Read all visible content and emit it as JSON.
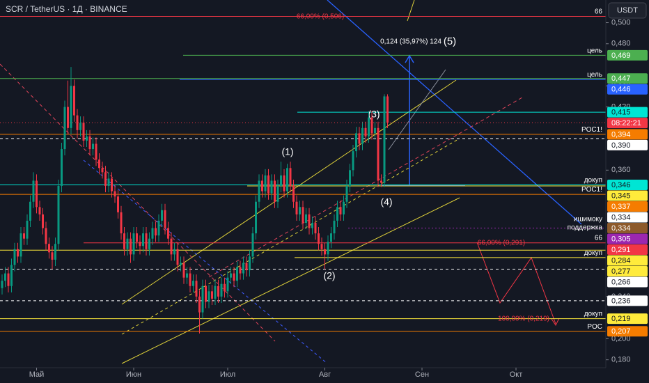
{
  "chart_data": {
    "type": "candlestick",
    "title": "SCR / TetherUS · 1Д · BINANCE",
    "currency": "USDT",
    "countdown": "08:22:21",
    "up_color": "#089981",
    "down_color": "#f23645",
    "ylim": [
      0.1725,
      0.5215
    ],
    "yticks": [
      {
        "value": 0.18,
        "label": "0,180"
      },
      {
        "value": 0.2,
        "label": "0,200"
      },
      {
        "value": 0.24,
        "label": "0,240"
      },
      {
        "value": 0.36,
        "label": "0,360"
      },
      {
        "value": 0.42,
        "label": "0,420"
      },
      {
        "value": 0.44,
        "label": "0,440"
      },
      {
        "value": 0.48,
        "label": "0,480"
      },
      {
        "value": 0.5,
        "label": "0,500"
      }
    ],
    "xticks": [
      {
        "value": 11,
        "label": "Май"
      },
      {
        "value": 42,
        "label": "Июн"
      },
      {
        "value": 72,
        "label": "Июл"
      },
      {
        "value": 103,
        "label": "Авг"
      },
      {
        "value": 134,
        "label": "Сен"
      },
      {
        "value": 164,
        "label": "Окт"
      }
    ],
    "candles": [
      [
        0.248,
        0.261,
        0.242,
        0.255
      ],
      [
        0.255,
        0.268,
        0.249,
        0.262
      ],
      [
        0.262,
        0.268,
        0.244,
        0.25
      ],
      [
        0.25,
        0.276,
        0.244,
        0.27
      ],
      [
        0.27,
        0.291,
        0.264,
        0.285
      ],
      [
        0.285,
        0.291,
        0.272,
        0.278
      ],
      [
        0.278,
        0.306,
        0.272,
        0.3
      ],
      [
        0.3,
        0.306,
        0.289,
        0.295
      ],
      [
        0.295,
        0.318,
        0.289,
        0.312
      ],
      [
        0.312,
        0.336,
        0.306,
        0.33
      ],
      [
        0.33,
        0.358,
        0.324,
        0.35
      ],
      [
        0.35,
        0.356,
        0.319,
        0.325
      ],
      [
        0.325,
        0.331,
        0.312,
        0.318
      ],
      [
        0.318,
        0.324,
        0.299,
        0.305
      ],
      [
        0.305,
        0.311,
        0.284,
        0.29
      ],
      [
        0.29,
        0.296,
        0.276,
        0.282
      ],
      [
        0.282,
        0.288,
        0.266,
        0.275
      ],
      [
        0.275,
        0.296,
        0.269,
        0.29
      ],
      [
        0.29,
        0.351,
        0.284,
        0.345
      ],
      [
        0.345,
        0.386,
        0.339,
        0.38
      ],
      [
        0.38,
        0.426,
        0.374,
        0.42
      ],
      [
        0.42,
        0.445,
        0.394,
        0.4
      ],
      [
        0.4,
        0.458,
        0.394,
        0.44
      ],
      [
        0.44,
        0.446,
        0.406,
        0.412
      ],
      [
        0.412,
        0.418,
        0.39,
        0.398
      ],
      [
        0.398,
        0.411,
        0.392,
        0.405
      ],
      [
        0.405,
        0.411,
        0.382,
        0.388
      ],
      [
        0.388,
        0.398,
        0.382,
        0.392
      ],
      [
        0.392,
        0.398,
        0.374,
        0.38
      ],
      [
        0.38,
        0.391,
        0.374,
        0.385
      ],
      [
        0.385,
        0.391,
        0.364,
        0.37
      ],
      [
        0.37,
        0.376,
        0.356,
        0.362
      ],
      [
        0.362,
        0.368,
        0.352,
        0.358
      ],
      [
        0.358,
        0.364,
        0.339,
        0.345
      ],
      [
        0.345,
        0.358,
        0.339,
        0.352
      ],
      [
        0.352,
        0.358,
        0.334,
        0.34
      ],
      [
        0.34,
        0.346,
        0.329,
        0.335
      ],
      [
        0.335,
        0.341,
        0.314,
        0.32
      ],
      [
        0.32,
        0.326,
        0.294,
        0.3
      ],
      [
        0.3,
        0.306,
        0.279,
        0.285
      ],
      [
        0.285,
        0.301,
        0.279,
        0.295
      ],
      [
        0.295,
        0.301,
        0.272,
        0.28
      ],
      [
        0.28,
        0.306,
        0.274,
        0.3
      ],
      [
        0.3,
        0.306,
        0.286,
        0.292
      ],
      [
        0.292,
        0.298,
        0.28,
        0.288
      ],
      [
        0.288,
        0.306,
        0.282,
        0.3
      ],
      [
        0.3,
        0.306,
        0.279,
        0.285
      ],
      [
        0.285,
        0.301,
        0.279,
        0.295
      ],
      [
        0.295,
        0.311,
        0.289,
        0.305
      ],
      [
        0.305,
        0.311,
        0.292,
        0.298
      ],
      [
        0.298,
        0.318,
        0.292,
        0.312
      ],
      [
        0.312,
        0.328,
        0.306,
        0.322
      ],
      [
        0.322,
        0.328,
        0.299,
        0.305
      ],
      [
        0.305,
        0.311,
        0.289,
        0.295
      ],
      [
        0.295,
        0.301,
        0.274,
        0.28
      ],
      [
        0.28,
        0.291,
        0.274,
        0.285
      ],
      [
        0.285,
        0.291,
        0.264,
        0.27
      ],
      [
        0.27,
        0.278,
        0.264,
        0.272
      ],
      [
        0.272,
        0.278,
        0.252,
        0.258
      ],
      [
        0.258,
        0.268,
        0.252,
        0.262
      ],
      [
        0.262,
        0.268,
        0.244,
        0.25
      ],
      [
        0.25,
        0.261,
        0.244,
        0.255
      ],
      [
        0.255,
        0.261,
        0.234,
        0.24
      ],
      [
        0.24,
        0.246,
        0.205,
        0.225
      ],
      [
        0.225,
        0.256,
        0.219,
        0.25
      ],
      [
        0.25,
        0.256,
        0.229,
        0.235
      ],
      [
        0.235,
        0.251,
        0.229,
        0.245
      ],
      [
        0.245,
        0.251,
        0.232,
        0.238
      ],
      [
        0.238,
        0.256,
        0.232,
        0.25
      ],
      [
        0.25,
        0.256,
        0.234,
        0.24
      ],
      [
        0.24,
        0.258,
        0.234,
        0.252
      ],
      [
        0.252,
        0.258,
        0.239,
        0.245
      ],
      [
        0.245,
        0.264,
        0.239,
        0.258
      ],
      [
        0.258,
        0.268,
        0.252,
        0.262
      ],
      [
        0.262,
        0.268,
        0.249,
        0.255
      ],
      [
        0.255,
        0.274,
        0.249,
        0.268
      ],
      [
        0.268,
        0.274,
        0.256,
        0.262
      ],
      [
        0.262,
        0.278,
        0.256,
        0.272
      ],
      [
        0.272,
        0.278,
        0.259,
        0.265
      ],
      [
        0.265,
        0.284,
        0.259,
        0.278
      ],
      [
        0.278,
        0.306,
        0.272,
        0.3
      ],
      [
        0.3,
        0.336,
        0.294,
        0.33
      ],
      [
        0.33,
        0.356,
        0.324,
        0.35
      ],
      [
        0.35,
        0.356,
        0.334,
        0.34
      ],
      [
        0.34,
        0.361,
        0.334,
        0.355
      ],
      [
        0.355,
        0.361,
        0.332,
        0.338
      ],
      [
        0.338,
        0.356,
        0.332,
        0.35
      ],
      [
        0.35,
        0.356,
        0.324,
        0.33
      ],
      [
        0.33,
        0.351,
        0.324,
        0.345
      ],
      [
        0.345,
        0.368,
        0.339,
        0.355
      ],
      [
        0.355,
        0.361,
        0.334,
        0.34
      ],
      [
        0.34,
        0.366,
        0.334,
        0.362
      ],
      [
        0.362,
        0.368,
        0.339,
        0.345
      ],
      [
        0.345,
        0.351,
        0.324,
        0.33
      ],
      [
        0.33,
        0.336,
        0.312,
        0.318
      ],
      [
        0.318,
        0.331,
        0.312,
        0.325
      ],
      [
        0.325,
        0.331,
        0.304,
        0.31
      ],
      [
        0.31,
        0.324,
        0.304,
        0.318
      ],
      [
        0.318,
        0.324,
        0.299,
        0.305
      ],
      [
        0.305,
        0.316,
        0.299,
        0.31
      ],
      [
        0.31,
        0.316,
        0.294,
        0.3
      ],
      [
        0.3,
        0.306,
        0.284,
        0.29
      ],
      [
        0.29,
        0.296,
        0.279,
        0.285
      ],
      [
        0.285,
        0.291,
        0.266,
        0.28
      ],
      [
        0.28,
        0.298,
        0.274,
        0.292
      ],
      [
        0.292,
        0.306,
        0.286,
        0.3
      ],
      [
        0.3,
        0.318,
        0.294,
        0.312
      ],
      [
        0.312,
        0.331,
        0.306,
        0.325
      ],
      [
        0.325,
        0.331,
        0.312,
        0.318
      ],
      [
        0.318,
        0.336,
        0.312,
        0.33
      ],
      [
        0.33,
        0.351,
        0.324,
        0.345
      ],
      [
        0.345,
        0.366,
        0.339,
        0.36
      ],
      [
        0.36,
        0.384,
        0.354,
        0.378
      ],
      [
        0.378,
        0.401,
        0.372,
        0.395
      ],
      [
        0.395,
        0.401,
        0.379,
        0.385
      ],
      [
        0.385,
        0.406,
        0.379,
        0.4
      ],
      [
        0.4,
        0.406,
        0.386,
        0.392
      ],
      [
        0.392,
        0.416,
        0.386,
        0.41
      ],
      [
        0.41,
        0.416,
        0.389,
        0.395
      ],
      [
        0.395,
        0.406,
        0.389,
        0.4
      ],
      [
        0.4,
        0.406,
        0.344,
        0.35
      ],
      [
        0.35,
        0.356,
        0.344,
        0.348
      ],
      [
        0.348,
        0.432,
        0.344,
        0.43
      ],
      [
        0.43,
        0.432,
        0.4,
        0.405
      ]
    ],
    "levels": [
      {
        "value": 0.506,
        "color": "#f23645",
        "note": "66"
      },
      {
        "value": 0.469,
        "label": "0,469",
        "color": "#4caf50",
        "note": "цель"
      },
      {
        "value": 0.447,
        "label": "0,447",
        "color": "#4caf50"
      },
      {
        "value": 0.446,
        "label": "0,446",
        "color": "#2962ff",
        "note": "цель"
      },
      {
        "value": 0.415,
        "label": "0,415",
        "color": "#00e5d4"
      },
      {
        "value": 0.394,
        "label": "0,394",
        "color": "#f57c00",
        "note": "POC1!"
      },
      {
        "value": 0.39,
        "label": "0,390",
        "color": "#ffffff"
      },
      {
        "value": 0.346,
        "label": "0,346",
        "color": "#00e5d4",
        "note": "докуп"
      },
      {
        "value": 0.345,
        "label": "0,345",
        "color": "#ffeb3b"
      },
      {
        "value": 0.337,
        "label": "0,337",
        "color": "#f57c00",
        "note": "POC1!"
      },
      {
        "value": 0.334,
        "label": "0,334",
        "color": "#ffffff"
      },
      {
        "value": 0.334,
        "label": "0,334",
        "color": "#8d5a2b"
      },
      {
        "value": 0.305,
        "label": "0,305",
        "color": "#9c27b0",
        "note": [
          "ишимоку",
          "поддержка"
        ]
      },
      {
        "value": 0.291,
        "label": "0,291",
        "color": "#f23645",
        "note": "66"
      },
      {
        "value": 0.284,
        "label": "0,284",
        "color": "#ffeb3b"
      },
      {
        "value": 0.277,
        "label": "0,277",
        "color": "#ffeb3b",
        "note": "докуп"
      },
      {
        "value": 0.266,
        "label": "0,266",
        "color": "#ffffff"
      },
      {
        "value": 0.236,
        "label": "0,236",
        "color": "#ffffff"
      },
      {
        "value": 0.219,
        "label": "0,219",
        "color": "#ffeb3b",
        "note": "докуп"
      },
      {
        "value": 0.207,
        "label": "0,207",
        "color": "#f57c00",
        "note": "POC"
      }
    ],
    "annotations": [
      "(1)",
      "(2)",
      "(3)",
      "(4)",
      "(5)",
      "0,124 (35,97%) 124",
      "66,00% (0,506)",
      "66,00% (0,291)",
      "100,00% (0,219)"
    ]
  }
}
